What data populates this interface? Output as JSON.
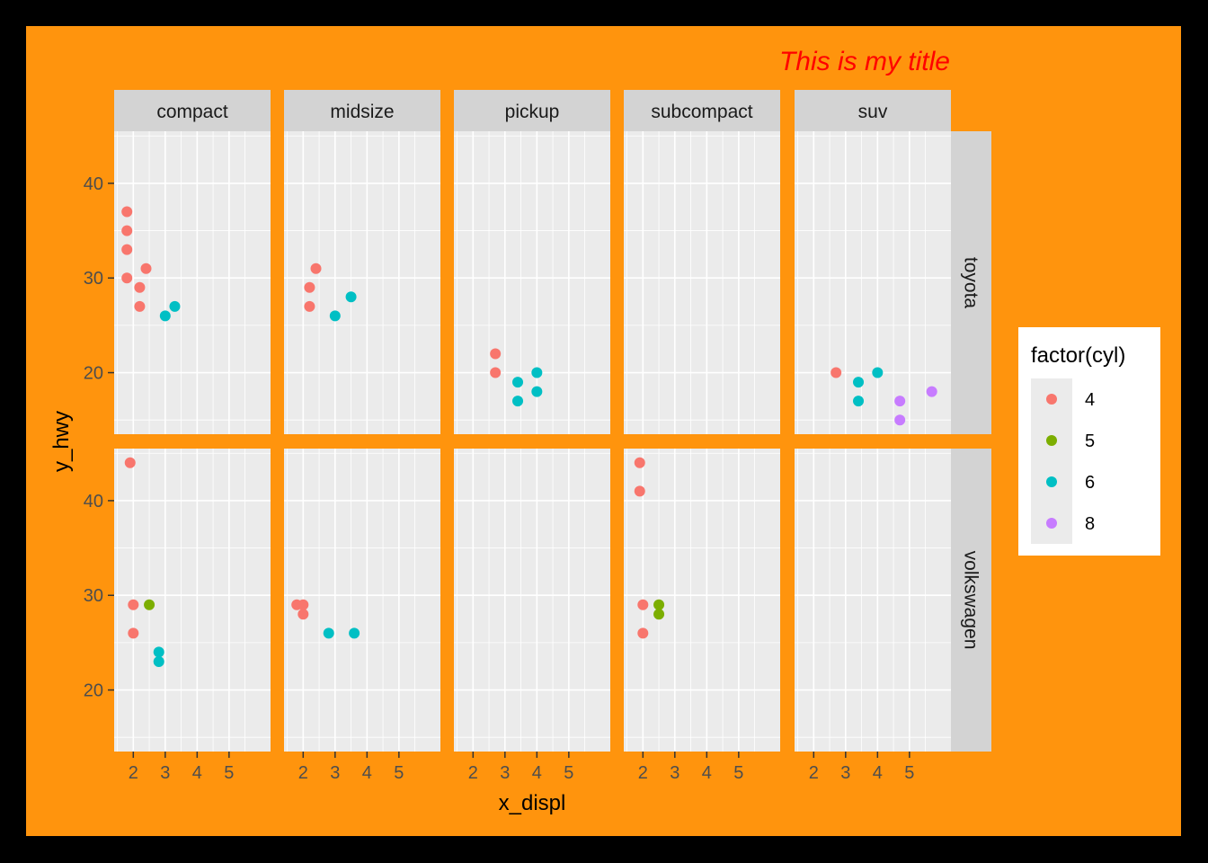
{
  "chart_data": {
    "type": "scatter",
    "title": "This is my title",
    "xlabel": "x_displ",
    "ylabel": "y_hwy",
    "xlim": [
      1.4,
      6.3
    ],
    "ylim": [
      13.5,
      45.5
    ],
    "xticks": [
      2,
      3,
      4,
      5
    ],
    "yticks": [
      20,
      30,
      40
    ],
    "grid": true,
    "legend_position": "right",
    "colors": {
      "outer_border": "#000000",
      "background": "#FF940D",
      "panel": "#EBEBEB",
      "strip": "#D3D3D3",
      "grid": "#FFFFFF",
      "title": "#FF0000",
      "text": "#000000",
      "tick_text": "#4D4D4D"
    },
    "columns": [
      "compact",
      "midsize",
      "pickup",
      "subcompact",
      "suv"
    ],
    "rows": [
      "toyota",
      "volkswagen"
    ],
    "legend": {
      "title": "factor(cyl)",
      "entries": [
        {
          "label": "4",
          "color": "#F8766D"
        },
        {
          "label": "5",
          "color": "#7CAE00"
        },
        {
          "label": "6",
          "color": "#00BFC4"
        },
        {
          "label": "8",
          "color": "#C77CFF"
        }
      ]
    },
    "points": [
      {
        "row": "toyota",
        "col": "compact",
        "x": 1.8,
        "y": 37,
        "cyl": "4"
      },
      {
        "row": "toyota",
        "col": "compact",
        "x": 1.8,
        "y": 35,
        "cyl": "4"
      },
      {
        "row": "toyota",
        "col": "compact",
        "x": 1.8,
        "y": 33,
        "cyl": "4"
      },
      {
        "row": "toyota",
        "col": "compact",
        "x": 1.8,
        "y": 30,
        "cyl": "4"
      },
      {
        "row": "toyota",
        "col": "compact",
        "x": 2.2,
        "y": 29,
        "cyl": "4"
      },
      {
        "row": "toyota",
        "col": "compact",
        "x": 2.2,
        "y": 27,
        "cyl": "4"
      },
      {
        "row": "toyota",
        "col": "compact",
        "x": 2.4,
        "y": 31,
        "cyl": "4"
      },
      {
        "row": "toyota",
        "col": "compact",
        "x": 3.0,
        "y": 26,
        "cyl": "6"
      },
      {
        "row": "toyota",
        "col": "compact",
        "x": 3.3,
        "y": 27,
        "cyl": "6"
      },
      {
        "row": "toyota",
        "col": "midsize",
        "x": 2.2,
        "y": 29,
        "cyl": "4"
      },
      {
        "row": "toyota",
        "col": "midsize",
        "x": 2.2,
        "y": 27,
        "cyl": "4"
      },
      {
        "row": "toyota",
        "col": "midsize",
        "x": 2.4,
        "y": 31,
        "cyl": "4"
      },
      {
        "row": "toyota",
        "col": "midsize",
        "x": 3.0,
        "y": 26,
        "cyl": "6"
      },
      {
        "row": "toyota",
        "col": "midsize",
        "x": 3.5,
        "y": 28,
        "cyl": "6"
      },
      {
        "row": "toyota",
        "col": "pickup",
        "x": 2.7,
        "y": 22,
        "cyl": "4"
      },
      {
        "row": "toyota",
        "col": "pickup",
        "x": 2.7,
        "y": 20,
        "cyl": "4"
      },
      {
        "row": "toyota",
        "col": "pickup",
        "x": 3.4,
        "y": 19,
        "cyl": "6"
      },
      {
        "row": "toyota",
        "col": "pickup",
        "x": 3.4,
        "y": 17,
        "cyl": "6"
      },
      {
        "row": "toyota",
        "col": "pickup",
        "x": 4.0,
        "y": 20,
        "cyl": "6"
      },
      {
        "row": "toyota",
        "col": "pickup",
        "x": 4.0,
        "y": 18,
        "cyl": "6"
      },
      {
        "row": "toyota",
        "col": "suv",
        "x": 2.7,
        "y": 20,
        "cyl": "4"
      },
      {
        "row": "toyota",
        "col": "suv",
        "x": 3.4,
        "y": 19,
        "cyl": "6"
      },
      {
        "row": "toyota",
        "col": "suv",
        "x": 3.4,
        "y": 17,
        "cyl": "6"
      },
      {
        "row": "toyota",
        "col": "suv",
        "x": 4.0,
        "y": 20,
        "cyl": "6"
      },
      {
        "row": "toyota",
        "col": "suv",
        "x": 4.7,
        "y": 17,
        "cyl": "8"
      },
      {
        "row": "toyota",
        "col": "suv",
        "x": 4.7,
        "y": 15,
        "cyl": "8"
      },
      {
        "row": "toyota",
        "col": "suv",
        "x": 5.7,
        "y": 18,
        "cyl": "8"
      },
      {
        "row": "volkswagen",
        "col": "compact",
        "x": 1.9,
        "y": 44,
        "cyl": "4"
      },
      {
        "row": "volkswagen",
        "col": "compact",
        "x": 2.0,
        "y": 29,
        "cyl": "4"
      },
      {
        "row": "volkswagen",
        "col": "compact",
        "x": 2.0,
        "y": 26,
        "cyl": "4"
      },
      {
        "row": "volkswagen",
        "col": "compact",
        "x": 2.5,
        "y": 29,
        "cyl": "5"
      },
      {
        "row": "volkswagen",
        "col": "compact",
        "x": 2.8,
        "y": 24,
        "cyl": "6"
      },
      {
        "row": "volkswagen",
        "col": "compact",
        "x": 2.8,
        "y": 23,
        "cyl": "6"
      },
      {
        "row": "volkswagen",
        "col": "midsize",
        "x": 1.8,
        "y": 29,
        "cyl": "4"
      },
      {
        "row": "volkswagen",
        "col": "midsize",
        "x": 2.0,
        "y": 29,
        "cyl": "4"
      },
      {
        "row": "volkswagen",
        "col": "midsize",
        "x": 2.0,
        "y": 28,
        "cyl": "4"
      },
      {
        "row": "volkswagen",
        "col": "midsize",
        "x": 2.8,
        "y": 26,
        "cyl": "6"
      },
      {
        "row": "volkswagen",
        "col": "midsize",
        "x": 3.6,
        "y": 26,
        "cyl": "6"
      },
      {
        "row": "volkswagen",
        "col": "subcompact",
        "x": 1.9,
        "y": 44,
        "cyl": "4"
      },
      {
        "row": "volkswagen",
        "col": "subcompact",
        "x": 1.9,
        "y": 41,
        "cyl": "4"
      },
      {
        "row": "volkswagen",
        "col": "subcompact",
        "x": 2.0,
        "y": 29,
        "cyl": "4"
      },
      {
        "row": "volkswagen",
        "col": "subcompact",
        "x": 2.0,
        "y": 26,
        "cyl": "4"
      },
      {
        "row": "volkswagen",
        "col": "subcompact",
        "x": 2.5,
        "y": 29,
        "cyl": "5"
      },
      {
        "row": "volkswagen",
        "col": "subcompact",
        "x": 2.5,
        "y": 28,
        "cyl": "5"
      }
    ]
  }
}
